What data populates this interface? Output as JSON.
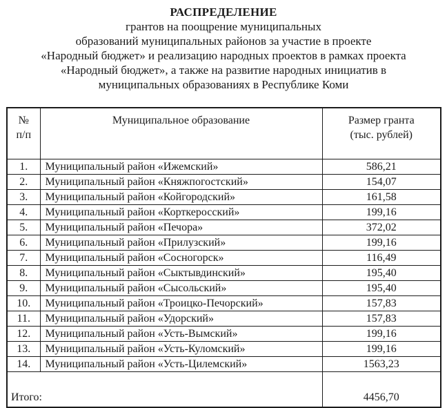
{
  "document": {
    "title": "РАСПРЕДЕЛЕНИЕ",
    "subtitle_lines": [
      "грантов на поощрение муниципальных",
      "образований муниципальных районов за участие в проекте",
      "«Народный бюджет» и реализацию народных проектов в рамках проекта",
      "«Народный бюджет», а также на развитие народных инициатив в",
      "муниципальных образованиях в Республике Коми"
    ]
  },
  "table": {
    "headers": {
      "num": "№\nп/п",
      "name": "Муниципальное образование",
      "grant": "Размер гранта\n(тыс. рублей)"
    },
    "rows": [
      {
        "num": "1.",
        "name": "Муниципальный район «Ижемский»",
        "value": "586,21"
      },
      {
        "num": "2.",
        "name": "Муниципальный район «Княжпогостский»",
        "value": "154,07"
      },
      {
        "num": "3.",
        "name": "Муниципальный район «Койгородский»",
        "value": "161,58"
      },
      {
        "num": "4.",
        "name": "Муниципальный район «Корткеросский»",
        "value": "199,16"
      },
      {
        "num": "5.",
        "name": "Муниципальный район «Печора»",
        "value": "372,02"
      },
      {
        "num": "6.",
        "name": "Муниципальный район «Прилузский»",
        "value": "199,16"
      },
      {
        "num": "7.",
        "name": "Муниципальный район «Сосногорск»",
        "value": "116,49"
      },
      {
        "num": "8.",
        "name": "Муниципальный район «Сыктывдинский»",
        "value": "195,40"
      },
      {
        "num": "9.",
        "name": "Муниципальный район «Сысольский»",
        "value": "195,40"
      },
      {
        "num": "10.",
        "name": "Муниципальный район «Троицко-Печорский»",
        "value": "157,83"
      },
      {
        "num": "11.",
        "name": "Муниципальный район «Удорский»",
        "value": "157,83"
      },
      {
        "num": "12.",
        "name": "Муниципальный район «Усть-Вымский»",
        "value": "199,16"
      },
      {
        "num": "13.",
        "name": "Муниципальный район «Усть-Куломский»",
        "value": "199,16"
      },
      {
        "num": "14.",
        "name": "Муниципальный район «Усть-Цилемский»",
        "value": "1563,23"
      }
    ],
    "total": {
      "label": "Итого:",
      "value": "4456,70"
    }
  },
  "colors": {
    "text": "#1b1b1b",
    "border": "#1b1b1b",
    "background": "#ffffff"
  }
}
